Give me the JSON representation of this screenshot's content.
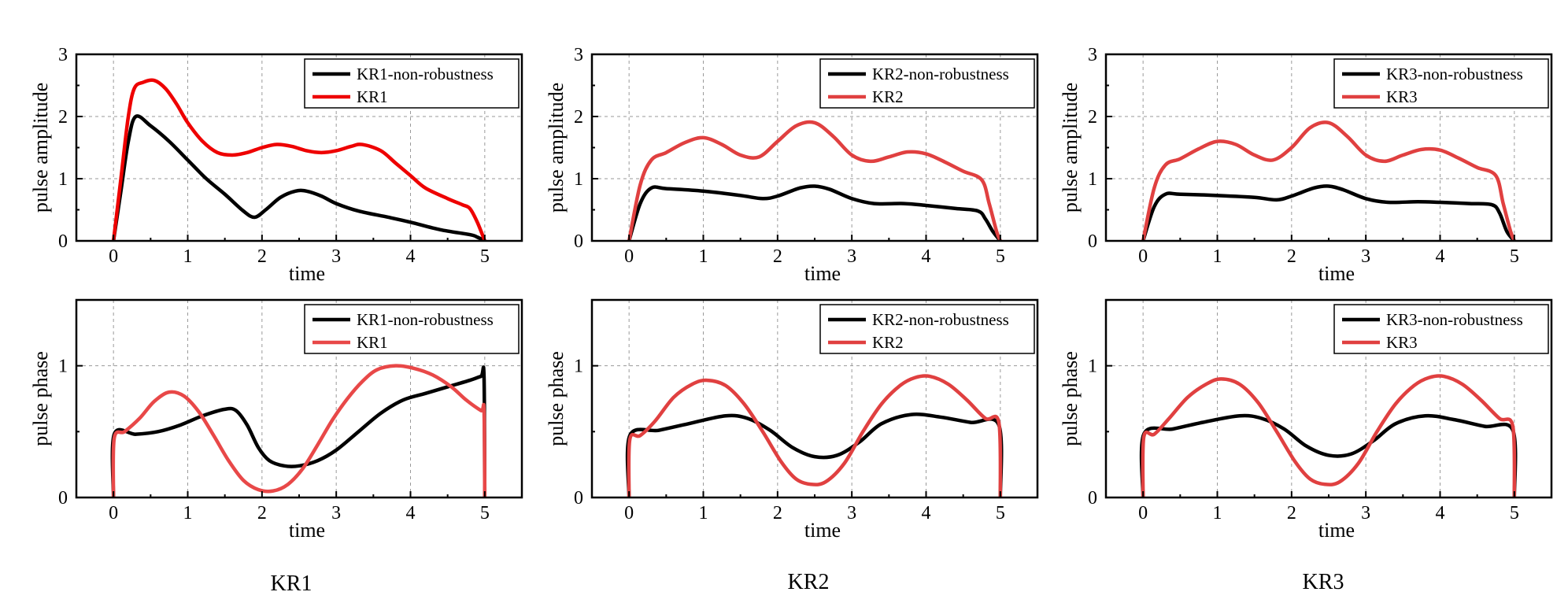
{
  "figure": {
    "captions": [
      "KR1",
      "KR2",
      "KR3"
    ]
  },
  "chart_data": [
    {
      "type": "line",
      "row": "amplitude",
      "column": 1,
      "xlabel": "time",
      "ylabel": "pulse amplitude",
      "xlim": [
        -0.5,
        5.5
      ],
      "ylim": [
        0,
        3
      ],
      "xticks": [
        0,
        1,
        2,
        3,
        4,
        5
      ],
      "yticks": [
        0,
        1,
        2,
        3
      ],
      "grid": true,
      "legend_position": "top-right",
      "series": [
        {
          "name": "KR1-non-robustness",
          "color": "#000000",
          "x": [
            0,
            0.1,
            0.2,
            0.3,
            0.5,
            0.75,
            1.0,
            1.25,
            1.5,
            1.75,
            1.9,
            2.05,
            2.25,
            2.45,
            2.6,
            2.8,
            3.0,
            3.3,
            3.7,
            4.0,
            4.4,
            4.8,
            4.9,
            5.0
          ],
          "y": [
            0,
            0.8,
            1.6,
            2.0,
            1.85,
            1.6,
            1.3,
            1.0,
            0.75,
            0.48,
            0.38,
            0.5,
            0.7,
            0.8,
            0.8,
            0.72,
            0.6,
            0.48,
            0.38,
            0.3,
            0.18,
            0.1,
            0.06,
            0
          ]
        },
        {
          "name": "KR1",
          "color": "#ee0000",
          "x": [
            0,
            0.1,
            0.2,
            0.28,
            0.4,
            0.55,
            0.7,
            0.85,
            1.0,
            1.2,
            1.4,
            1.6,
            1.8,
            2.0,
            2.2,
            2.4,
            2.6,
            2.8,
            3.0,
            3.2,
            3.35,
            3.6,
            3.8,
            4.0,
            4.2,
            4.5,
            4.7,
            4.8,
            4.9,
            5.0
          ],
          "y": [
            0,
            1.0,
            2.0,
            2.45,
            2.55,
            2.58,
            2.45,
            2.2,
            1.9,
            1.6,
            1.42,
            1.38,
            1.42,
            1.5,
            1.55,
            1.52,
            1.45,
            1.42,
            1.45,
            1.52,
            1.55,
            1.45,
            1.25,
            1.05,
            0.85,
            0.68,
            0.58,
            0.52,
            0.3,
            0
          ]
        }
      ]
    },
    {
      "type": "line",
      "row": "amplitude",
      "column": 2,
      "xlabel": "time",
      "ylabel": "pulse amplitude",
      "xlim": [
        -0.5,
        5.5
      ],
      "ylim": [
        0,
        3
      ],
      "xticks": [
        0,
        1,
        2,
        3,
        4,
        5
      ],
      "yticks": [
        0,
        1,
        2,
        3
      ],
      "grid": true,
      "legend_position": "top-right",
      "series": [
        {
          "name": "KR2-non-robustness",
          "color": "#000000",
          "x": [
            0,
            0.15,
            0.3,
            0.5,
            1.0,
            1.5,
            1.8,
            2.0,
            2.3,
            2.5,
            2.7,
            3.0,
            3.3,
            3.7,
            4.0,
            4.4,
            4.7,
            4.8,
            4.9,
            5.0
          ],
          "y": [
            0,
            0.6,
            0.85,
            0.84,
            0.8,
            0.73,
            0.68,
            0.72,
            0.85,
            0.88,
            0.83,
            0.68,
            0.6,
            0.6,
            0.57,
            0.52,
            0.48,
            0.35,
            0.15,
            0
          ]
        },
        {
          "name": "KR2",
          "color": "#e04040",
          "x": [
            0,
            0.15,
            0.3,
            0.5,
            0.75,
            1.0,
            1.25,
            1.5,
            1.75,
            2.0,
            2.25,
            2.5,
            2.75,
            3.0,
            3.25,
            3.5,
            3.75,
            4.0,
            4.25,
            4.5,
            4.75,
            4.85,
            4.95,
            5.0
          ],
          "y": [
            0,
            0.9,
            1.3,
            1.42,
            1.58,
            1.66,
            1.55,
            1.38,
            1.35,
            1.6,
            1.85,
            1.9,
            1.68,
            1.38,
            1.28,
            1.35,
            1.43,
            1.4,
            1.27,
            1.12,
            0.98,
            0.6,
            0.15,
            0
          ]
        }
      ]
    },
    {
      "type": "line",
      "row": "amplitude",
      "column": 3,
      "xlabel": "time",
      "ylabel": "pulse amplitude",
      "xlim": [
        -0.5,
        5.5
      ],
      "ylim": [
        0,
        3
      ],
      "xticks": [
        0,
        1,
        2,
        3,
        4,
        5
      ],
      "yticks": [
        0,
        1,
        2,
        3
      ],
      "grid": true,
      "legend_position": "top-right",
      "series": [
        {
          "name": "KR3-non-robustness",
          "color": "#000000",
          "x": [
            0,
            0.15,
            0.3,
            0.5,
            1.0,
            1.5,
            1.8,
            2.0,
            2.3,
            2.5,
            2.7,
            3.0,
            3.3,
            3.7,
            4.0,
            4.4,
            4.7,
            4.8,
            4.9,
            5.0
          ],
          "y": [
            0,
            0.55,
            0.75,
            0.75,
            0.73,
            0.7,
            0.66,
            0.72,
            0.85,
            0.88,
            0.82,
            0.68,
            0.62,
            0.63,
            0.62,
            0.6,
            0.58,
            0.45,
            0.15,
            0
          ]
        },
        {
          "name": "KR3",
          "color": "#e04040",
          "x": [
            0,
            0.15,
            0.3,
            0.5,
            0.75,
            1.0,
            1.25,
            1.5,
            1.75,
            2.0,
            2.25,
            2.5,
            2.75,
            3.0,
            3.25,
            3.5,
            3.75,
            4.0,
            4.25,
            4.5,
            4.75,
            4.85,
            4.95,
            5.0
          ],
          "y": [
            0,
            0.85,
            1.22,
            1.32,
            1.48,
            1.6,
            1.55,
            1.38,
            1.3,
            1.5,
            1.82,
            1.9,
            1.68,
            1.38,
            1.28,
            1.38,
            1.47,
            1.46,
            1.33,
            1.18,
            1.05,
            0.6,
            0.15,
            0
          ]
        }
      ]
    },
    {
      "type": "line",
      "row": "phase",
      "column": 1,
      "xlabel": "time",
      "ylabel": "pulse phase",
      "xlim": [
        -0.5,
        5.5
      ],
      "ylim": [
        0,
        1.5
      ],
      "xticks": [
        0,
        1,
        2,
        3,
        4,
        5
      ],
      "yticks": [
        0,
        1
      ],
      "grid": true,
      "legend_position": "top-right",
      "series": [
        {
          "name": "KR1-non-robustness",
          "color": "#000000",
          "x": [
            0,
            0.01,
            0.3,
            0.6,
            0.9,
            1.2,
            1.5,
            1.65,
            1.8,
            1.95,
            2.1,
            2.3,
            2.5,
            2.75,
            3.0,
            3.3,
            3.6,
            3.9,
            4.2,
            4.5,
            4.8,
            4.95,
            4.99,
            5.0
          ],
          "y": [
            0,
            0.48,
            0.48,
            0.5,
            0.55,
            0.62,
            0.67,
            0.66,
            0.55,
            0.38,
            0.28,
            0.24,
            0.24,
            0.28,
            0.36,
            0.5,
            0.64,
            0.74,
            0.79,
            0.84,
            0.89,
            0.92,
            0.92,
            0
          ]
        },
        {
          "name": "KR1",
          "color": "#e84848",
          "x": [
            0,
            0.01,
            0.15,
            0.35,
            0.55,
            0.75,
            0.95,
            1.15,
            1.35,
            1.55,
            1.75,
            1.95,
            2.15,
            2.35,
            2.55,
            2.75,
            2.95,
            3.15,
            3.35,
            3.55,
            3.8,
            4.05,
            4.3,
            4.55,
            4.75,
            4.95,
            4.99,
            5.0
          ],
          "y": [
            0,
            0.45,
            0.5,
            0.6,
            0.73,
            0.8,
            0.77,
            0.65,
            0.47,
            0.28,
            0.13,
            0.06,
            0.05,
            0.1,
            0.22,
            0.4,
            0.59,
            0.75,
            0.88,
            0.97,
            1.0,
            0.98,
            0.93,
            0.84,
            0.74,
            0.66,
            0.66,
            0
          ]
        }
      ]
    },
    {
      "type": "line",
      "row": "phase",
      "column": 2,
      "xlabel": "time",
      "ylabel": "pulse phase",
      "xlim": [
        -0.5,
        5.5
      ],
      "ylim": [
        0,
        1.5
      ],
      "xticks": [
        0,
        1,
        2,
        3,
        4,
        5
      ],
      "yticks": [
        0,
        1
      ],
      "grid": true,
      "legend_position": "top-right",
      "series": [
        {
          "name": "KR2-non-robustness",
          "color": "#000000",
          "x": [
            0,
            0.01,
            0.4,
            0.8,
            1.3,
            1.6,
            1.9,
            2.2,
            2.5,
            2.8,
            3.1,
            3.4,
            3.8,
            4.2,
            4.6,
            4.98,
            5.0
          ],
          "y": [
            0,
            0.47,
            0.51,
            0.56,
            0.62,
            0.6,
            0.51,
            0.38,
            0.31,
            0.32,
            0.42,
            0.56,
            0.63,
            0.61,
            0.57,
            0.55,
            0
          ]
        },
        {
          "name": "KR2",
          "color": "#e04040",
          "x": [
            0,
            0.01,
            0.15,
            0.35,
            0.6,
            0.85,
            1.05,
            1.3,
            1.55,
            1.8,
            2.05,
            2.25,
            2.45,
            2.65,
            2.9,
            3.15,
            3.4,
            3.65,
            3.85,
            4.05,
            4.3,
            4.55,
            4.8,
            4.98,
            5.0
          ],
          "y": [
            0,
            0.44,
            0.47,
            0.58,
            0.76,
            0.86,
            0.89,
            0.85,
            0.71,
            0.5,
            0.27,
            0.14,
            0.1,
            0.12,
            0.26,
            0.5,
            0.71,
            0.85,
            0.91,
            0.92,
            0.86,
            0.74,
            0.6,
            0.57,
            0
          ]
        }
      ]
    },
    {
      "type": "line",
      "row": "phase",
      "column": 3,
      "xlabel": "time",
      "ylabel": "pulse phase",
      "xlim": [
        -0.5,
        5.5
      ],
      "ylim": [
        0,
        1.5
      ],
      "xticks": [
        0,
        1,
        2,
        3,
        4,
        5
      ],
      "yticks": [
        0,
        1
      ],
      "grid": true,
      "legend_position": "top-right",
      "series": [
        {
          "name": "KR3-non-robustness",
          "color": "#000000",
          "x": [
            0,
            0.01,
            0.4,
            0.8,
            1.3,
            1.6,
            1.9,
            2.2,
            2.5,
            2.8,
            3.1,
            3.4,
            3.8,
            4.2,
            4.6,
            4.98,
            5.0
          ],
          "y": [
            0,
            0.48,
            0.52,
            0.57,
            0.62,
            0.6,
            0.52,
            0.39,
            0.32,
            0.33,
            0.43,
            0.56,
            0.62,
            0.59,
            0.54,
            0.51,
            0
          ]
        },
        {
          "name": "KR3",
          "color": "#e04040",
          "x": [
            0,
            0.01,
            0.15,
            0.35,
            0.6,
            0.85,
            1.05,
            1.3,
            1.55,
            1.8,
            2.05,
            2.25,
            2.45,
            2.65,
            2.9,
            3.15,
            3.4,
            3.65,
            3.85,
            4.05,
            4.3,
            4.55,
            4.8,
            4.98,
            5.0
          ],
          "y": [
            0,
            0.46,
            0.48,
            0.6,
            0.76,
            0.86,
            0.9,
            0.86,
            0.72,
            0.5,
            0.27,
            0.14,
            0.1,
            0.12,
            0.26,
            0.5,
            0.71,
            0.85,
            0.91,
            0.92,
            0.86,
            0.74,
            0.6,
            0.54,
            0
          ]
        }
      ]
    }
  ]
}
